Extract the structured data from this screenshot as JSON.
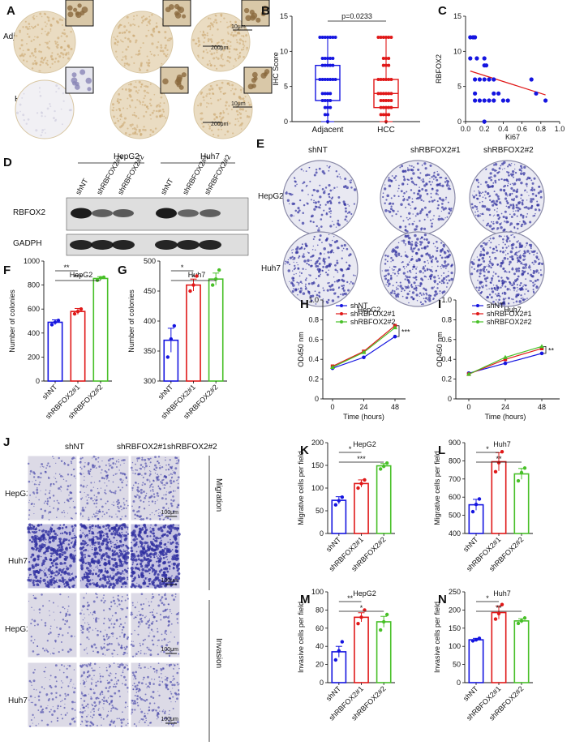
{
  "panels": {
    "A": {
      "label": "A",
      "rows": [
        "Adjacent",
        "HCC"
      ],
      "scale_main": "200μm",
      "scale_inset": "10μm"
    },
    "B": {
      "label": "B"
    },
    "C": {
      "label": "C"
    },
    "D": {
      "label": "D",
      "cell_lines": [
        "HepG2",
        "Huh7"
      ],
      "lanes": [
        "shNT",
        "shRBFOX2#1",
        "shRBFOX2#2",
        "shNT",
        "shRBFOX2#1",
        "shRBFOX2#2"
      ],
      "proteins": [
        "RBFOX2",
        "GADPH"
      ],
      "band_intensity": {
        "RBFOX2": [
          1.0,
          0.45,
          0.5,
          1.0,
          0.4,
          0.45
        ],
        "GADPH": [
          1.0,
          1.0,
          1.0,
          1.0,
          1.0,
          1.0
        ]
      }
    },
    "E": {
      "label": "E",
      "columns": [
        "shNT",
        "shRBFOX2#1",
        "shRBFOX2#2"
      ],
      "rows": [
        "HepG2",
        "Huh7"
      ],
      "density": [
        [
          0.35,
          0.55,
          0.7
        ],
        [
          0.6,
          0.8,
          0.9
        ]
      ]
    },
    "F": {
      "label": "F"
    },
    "G": {
      "label": "G"
    },
    "H": {
      "label": "H"
    },
    "I": {
      "label": "I"
    },
    "J": {
      "label": "J",
      "columns": [
        "shNT",
        "shRBFOX2#1",
        "shRBFOX2#2"
      ],
      "rows": [
        "HepG2",
        "Huh7",
        "HepG2",
        "Huh7"
      ],
      "sections": [
        "Migration",
        "Invasion"
      ],
      "scale": "100μm",
      "density": [
        [
          0.25,
          0.35,
          0.45
        ],
        [
          0.75,
          0.85,
          0.8
        ],
        [
          0.15,
          0.3,
          0.28
        ],
        [
          0.2,
          0.4,
          0.35
        ]
      ]
    },
    "K": {
      "label": "K"
    },
    "L": {
      "label": "L"
    },
    "M": {
      "label": "M"
    },
    "N": {
      "label": "N"
    }
  },
  "colors": {
    "blue": "#1515e0",
    "red": "#e01818",
    "green": "#48c028",
    "brown": "#c8a46c",
    "stain": "#3030a0"
  },
  "chart_data": [
    {
      "id": "B",
      "type": "box",
      "title": "",
      "ylabel": "IHC Score",
      "categories": [
        "Adjacent",
        "HCC"
      ],
      "ylim": [
        0,
        15
      ],
      "yticks": [
        0,
        5,
        10,
        15
      ],
      "annotation": "p=0.0233",
      "boxes": [
        {
          "name": "Adjacent",
          "color": "blue",
          "min": 0,
          "q1": 3,
          "median": 6,
          "q3": 8,
          "max": 12
        },
        {
          "name": "HCC",
          "color": "red",
          "min": 0,
          "q1": 2,
          "median": 4,
          "q3": 6,
          "max": 12
        }
      ],
      "points": [
        [
          0,
          1,
          1,
          2,
          2,
          2,
          3,
          3,
          3,
          3,
          4,
          4,
          4,
          4,
          6,
          6,
          6,
          6,
          6,
          6,
          6,
          8,
          8,
          8,
          8,
          8,
          9,
          9,
          9,
          9,
          9,
          12,
          12,
          12,
          12,
          12,
          12,
          12
        ],
        [
          0,
          1,
          1,
          1,
          1,
          2,
          2,
          2,
          2,
          2,
          3,
          3,
          3,
          3,
          3,
          4,
          4,
          4,
          4,
          4,
          4,
          6,
          6,
          6,
          6,
          6,
          6,
          8,
          8,
          8,
          9,
          9,
          9,
          12,
          12,
          12,
          12,
          12,
          12
        ]
      ]
    },
    {
      "id": "C",
      "type": "scatter",
      "xlabel": "Ki67",
      "ylabel": "RBFOX2",
      "xlim": [
        0,
        1
      ],
      "ylim": [
        0,
        15
      ],
      "xticks": [
        0,
        0.2,
        0.4,
        0.6,
        0.8,
        1.0
      ],
      "xtick_labels": [
        "0.0",
        "0.2",
        "0.4",
        "0.6",
        "0.8",
        "1.0"
      ],
      "yticks": [
        0,
        5,
        10,
        15
      ],
      "x": [
        0.05,
        0.08,
        0.1,
        0.05,
        0.12,
        0.2,
        0.2,
        0.22,
        0.15,
        0.1,
        0.2,
        0.25,
        0.3,
        0.35,
        0.3,
        0.1,
        0.1,
        0.15,
        0.2,
        0.25,
        0.3,
        0.4,
        0.45,
        0.7,
        0.75,
        0.85,
        0.2
      ],
      "y": [
        12,
        12,
        12,
        9,
        9,
        9,
        8,
        8,
        6,
        6,
        6,
        6,
        6,
        4,
        4,
        4,
        3,
        3,
        3,
        3,
        3,
        3,
        3,
        6,
        4,
        3,
        0
      ],
      "fit": {
        "x": [
          0.05,
          0.85
        ],
        "y": [
          7.2,
          3.8
        ]
      }
    },
    {
      "id": "F",
      "type": "bar",
      "title": "HepG2",
      "ylabel": "Number of colonies",
      "categories": [
        "shNT",
        "shRBFOX2#1",
        "shRBFOX2#2"
      ],
      "ylim": [
        0,
        1000
      ],
      "yticks": [
        0,
        200,
        400,
        600,
        800,
        1000
      ],
      "values": [
        490,
        580,
        855
      ],
      "errors": [
        20,
        25,
        15
      ],
      "points": [
        [
          470,
          490,
          505
        ],
        [
          560,
          580,
          600
        ],
        [
          840,
          860,
          865
        ]
      ],
      "significance": [
        {
          "from": 0,
          "to": 1,
          "label": "**"
        },
        {
          "from": 0,
          "to": 2,
          "label": "***"
        }
      ]
    },
    {
      "id": "G",
      "type": "bar",
      "title": "Huh7",
      "ylabel": "Number of colonies",
      "categories": [
        "shNT",
        "shRBFOX2#1",
        "shRBFOX2#2"
      ],
      "ylim": [
        300,
        500
      ],
      "yticks": [
        300,
        350,
        400,
        450,
        500
      ],
      "values": [
        368,
        460,
        470
      ],
      "errors": [
        20,
        10,
        10
      ],
      "points": [
        [
          340,
          370,
          392
        ],
        [
          450,
          460,
          475
        ],
        [
          460,
          470,
          485
        ]
      ],
      "significance": [
        {
          "from": 0,
          "to": 1,
          "label": "*"
        },
        {
          "from": 0,
          "to": 2,
          "label": "*"
        }
      ]
    },
    {
      "id": "H",
      "type": "line",
      "title": "HepG2",
      "xlabel": "Time (hours)",
      "ylabel": "OD450 nm",
      "x": [
        0,
        24,
        48
      ],
      "ylim": [
        0,
        1.0
      ],
      "yticks": [
        0,
        0.2,
        0.4,
        0.6,
        0.8,
        1.0
      ],
      "ytick_labels": [
        "0",
        "0.2",
        "0.4",
        "0.6",
        "0.8",
        "1.0"
      ],
      "annotation": "***",
      "series": [
        {
          "name": "shNT",
          "color": "blue",
          "values": [
            0.31,
            0.42,
            0.63
          ]
        },
        {
          "name": "shRBFOX2#1",
          "color": "red",
          "values": [
            0.33,
            0.48,
            0.74
          ]
        },
        {
          "name": "shRBFOX2#2",
          "color": "green",
          "values": [
            0.32,
            0.47,
            0.72
          ]
        }
      ]
    },
    {
      "id": "I",
      "type": "line",
      "title": "Huh7",
      "xlabel": "Time (hours)",
      "ylabel": "OD450 nm",
      "x": [
        0,
        24,
        48
      ],
      "ylim": [
        0,
        1.0
      ],
      "yticks": [
        0,
        0.2,
        0.4,
        0.6,
        0.8,
        1.0
      ],
      "ytick_labels": [
        "0",
        "0.2",
        "0.4",
        "0.6",
        "0.8",
        "1.0"
      ],
      "annotation": "**",
      "series": [
        {
          "name": "shNT",
          "color": "blue",
          "values": [
            0.26,
            0.36,
            0.46
          ]
        },
        {
          "name": "shRBFOX2#1",
          "color": "red",
          "values": [
            0.25,
            0.4,
            0.51
          ]
        },
        {
          "name": "shRBFOX2#2",
          "color": "green",
          "values": [
            0.25,
            0.42,
            0.53
          ]
        }
      ]
    },
    {
      "id": "K",
      "type": "bar",
      "title": "HepG2",
      "ylabel": "Migrative cells per field",
      "categories": [
        "shNT",
        "shRBFOX2#1",
        "shRBFOX2#2"
      ],
      "ylim": [
        0,
        200
      ],
      "yticks": [
        0,
        50,
        100,
        150,
        200
      ],
      "values": [
        73,
        110,
        149
      ],
      "errors": [
        8,
        8,
        5
      ],
      "points": [
        [
          63,
          72,
          80
        ],
        [
          100,
          110,
          118
        ],
        [
          142,
          148,
          155
        ]
      ],
      "significance": [
        {
          "from": 0,
          "to": 1,
          "label": "*"
        },
        {
          "from": 0,
          "to": 2,
          "label": "***"
        }
      ]
    },
    {
      "id": "L",
      "type": "bar",
      "title": "Huh7",
      "ylabel": "Migrative cells per field",
      "categories": [
        "shNT",
        "shRBFOX2#1",
        "shRBFOX2#2"
      ],
      "ylim": [
        400,
        900
      ],
      "yticks": [
        400,
        500,
        600,
        700,
        800,
        900
      ],
      "values": [
        558,
        795,
        728
      ],
      "errors": [
        30,
        50,
        30
      ],
      "points": [
        [
          520,
          560,
          590
        ],
        [
          740,
          790,
          850
        ],
        [
          690,
          735,
          760
        ]
      ],
      "significance": [
        {
          "from": 0,
          "to": 1,
          "label": "*"
        },
        {
          "from": 0,
          "to": 2,
          "label": "**"
        }
      ]
    },
    {
      "id": "M",
      "type": "bar",
      "title": "HepG2",
      "ylabel": "Invasive cells per field",
      "categories": [
        "shNT",
        "shRBFOX2#1",
        "shRBFOX2#2"
      ],
      "ylim": [
        0,
        100
      ],
      "yticks": [
        0,
        20,
        40,
        60,
        80,
        100
      ],
      "values": [
        34,
        72,
        67
      ],
      "errors": [
        6,
        5,
        6
      ],
      "points": [
        [
          25,
          35,
          45
        ],
        [
          65,
          72,
          80
        ],
        [
          58,
          67,
          75
        ]
      ],
      "significance": [
        {
          "from": 0,
          "to": 1,
          "label": "**"
        },
        {
          "from": 0,
          "to": 2,
          "label": "*"
        }
      ]
    },
    {
      "id": "N",
      "type": "bar",
      "title": "Huh7",
      "ylabel": "Invasive cells per field",
      "categories": [
        "shNT",
        "shRBFOX2#1",
        "shRBFOX2#2"
      ],
      "ylim": [
        0,
        250
      ],
      "yticks": [
        0,
        50,
        100,
        150,
        200,
        250
      ],
      "values": [
        118,
        193,
        170
      ],
      "errors": [
        4,
        18,
        6
      ],
      "points": [
        [
          115,
          118,
          122
        ],
        [
          175,
          190,
          215
        ],
        [
          163,
          170,
          178
        ]
      ],
      "significance": [
        {
          "from": 0,
          "to": 1,
          "label": "*"
        },
        {
          "from": 0,
          "to": 2,
          "label": "**"
        }
      ]
    }
  ]
}
